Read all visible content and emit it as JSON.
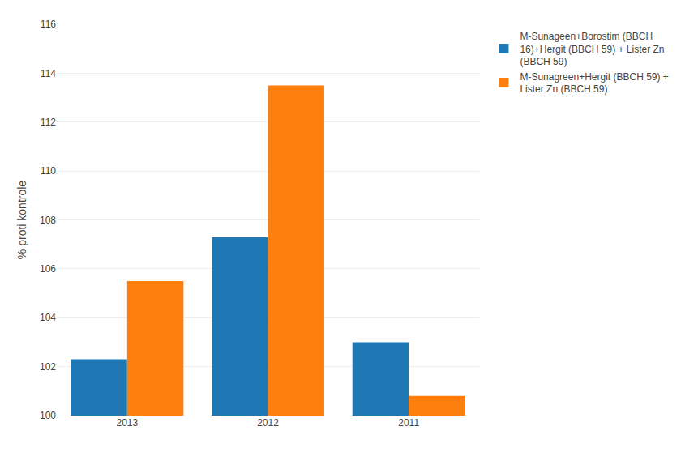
{
  "chart_data": {
    "type": "bar",
    "categories": [
      "2013",
      "2012",
      "2011"
    ],
    "series": [
      {
        "name": "M-Sunageen+Borostim (BBCH\n16)+Hergit (BBCH 59) + Lister Zn\n(BBCH 59)",
        "values": [
          102.3,
          107.3,
          103.0
        ]
      },
      {
        "name": "M-Sunagreen+Hergit (BBCH 59) +\nLister Zn (BBCH 59)",
        "values": [
          105.5,
          113.5,
          100.8
        ]
      }
    ],
    "ylabel": "% proti kontrole",
    "ylim": [
      100,
      116
    ],
    "yticks": [
      100,
      102,
      104,
      106,
      108,
      110,
      112,
      114,
      116
    ],
    "grid": true,
    "legend": "right"
  }
}
